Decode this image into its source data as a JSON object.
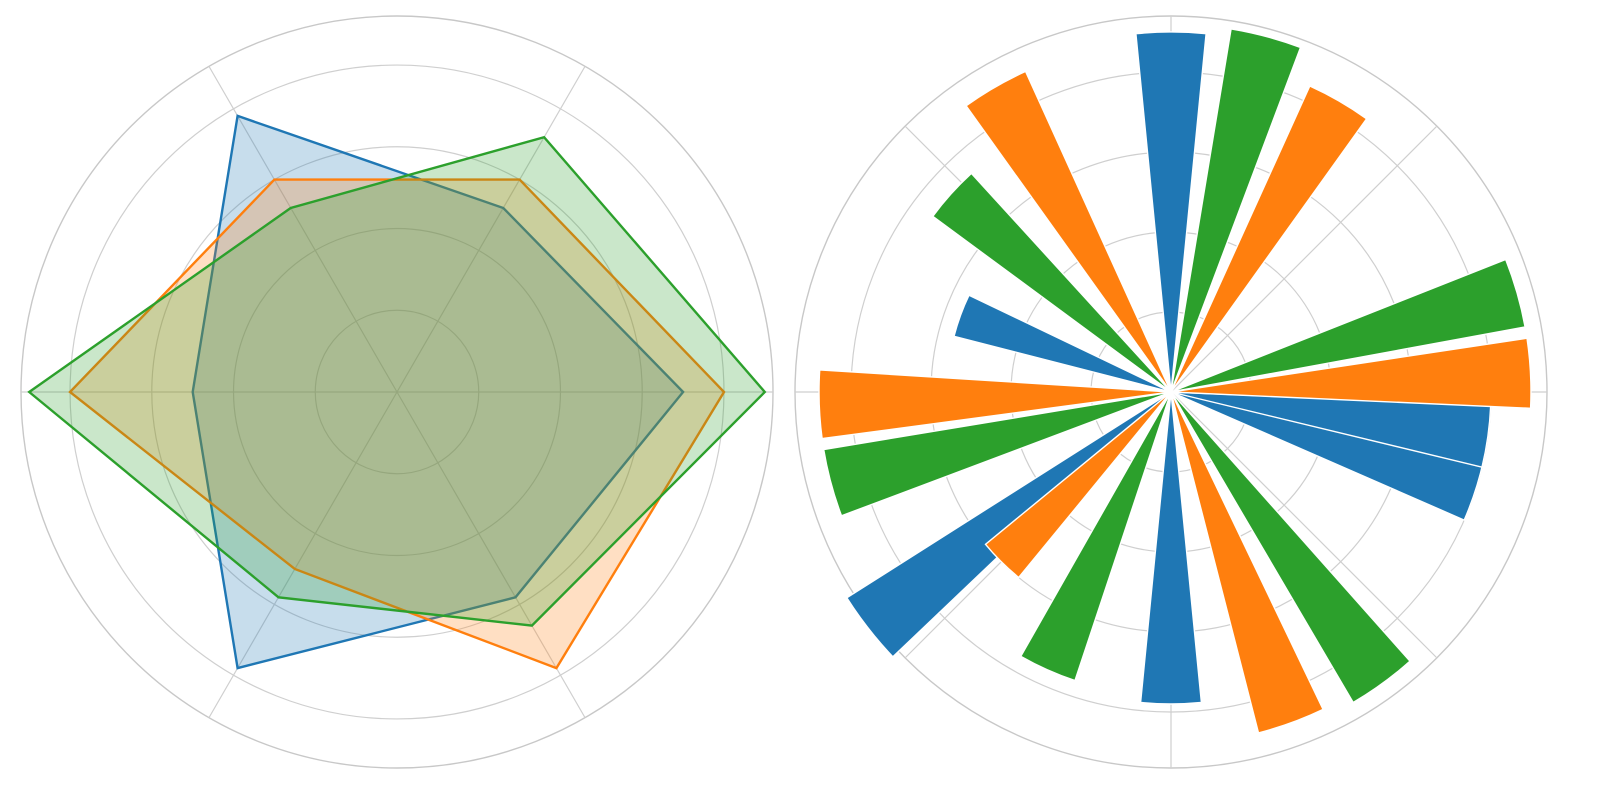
{
  "colors": {
    "series_a": "#1f77b4",
    "series_b": "#ff7f0e",
    "series_c": "#2ca02c",
    "grid": "#cfcfcf",
    "background": "#ffffff"
  },
  "chart_data": [
    {
      "type": "radar",
      "title": "",
      "categories": [
        "",
        "",
        "",
        "",
        "",
        ""
      ],
      "rlim": [
        0,
        4.6
      ],
      "rticks": [
        1,
        2,
        3,
        4
      ],
      "grid": true,
      "fill_alpha": 0.25,
      "series": [
        {
          "color_key": "series_a",
          "values": [
            3.5,
            2.6,
            3.9,
            2.5,
            3.9,
            2.9
          ]
        },
        {
          "color_key": "series_b",
          "values": [
            4.0,
            3.0,
            3.0,
            4.0,
            2.5,
            3.9
          ]
        },
        {
          "color_key": "series_c",
          "values": [
            4.5,
            3.6,
            2.6,
            4.5,
            2.9,
            3.3
          ]
        }
      ]
    },
    {
      "type": "polar_bar",
      "title": "",
      "rlim": [
        0,
        4.7
      ],
      "rticks": [
        1,
        2,
        3,
        4
      ],
      "grid": true,
      "bar_width_deg": 11.2,
      "series": [
        {
          "color_key": "series_a",
          "angles_deg": [
            90,
            160,
            218,
            342,
            270,
            352
          ],
          "values": [
            4.5,
            2.8,
            4.8,
            4.0,
            3.9,
            4.0
          ]
        },
        {
          "color_key": "series_b",
          "angles_deg": [
            120,
            182,
            225,
            3,
            290,
            60
          ],
          "values": [
            4.4,
            4.4,
            3.0,
            4.5,
            4.4,
            4.2
          ]
        },
        {
          "color_key": "series_c",
          "angles_deg": [
            138,
            195,
            246,
            16,
            306,
            75
          ],
          "values": [
            3.7,
            4.4,
            3.8,
            4.5,
            4.5,
            4.6
          ]
        }
      ]
    }
  ]
}
